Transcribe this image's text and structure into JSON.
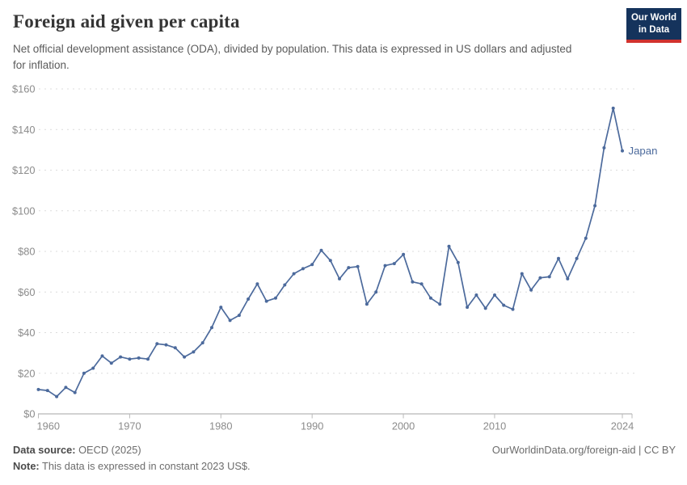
{
  "header": {
    "title": "Foreign aid given per capita",
    "subtitle": "Net official development assistance (ODA), divided by population. This data is expressed in US dollars and adjusted for inflation.",
    "logo": {
      "line1": "Our World",
      "line2": "in Data"
    }
  },
  "chart_data": {
    "type": "line",
    "title": "Foreign aid given per capita",
    "x": [
      1960,
      1961,
      1962,
      1963,
      1964,
      1965,
      1966,
      1967,
      1968,
      1969,
      1970,
      1971,
      1972,
      1973,
      1974,
      1975,
      1976,
      1977,
      1978,
      1979,
      1980,
      1981,
      1982,
      1983,
      1984,
      1985,
      1986,
      1987,
      1988,
      1989,
      1990,
      1991,
      1992,
      1993,
      1994,
      1995,
      1996,
      1997,
      1998,
      1999,
      2000,
      2001,
      2002,
      2003,
      2004,
      2005,
      2006,
      2007,
      2008,
      2009,
      2010,
      2011,
      2012,
      2013,
      2014,
      2015,
      2016,
      2017,
      2018,
      2019,
      2020,
      2021,
      2022,
      2023,
      2024
    ],
    "series": [
      {
        "name": "Japan",
        "color": "#4c6a9c",
        "values": [
          12,
          11.5,
          8.5,
          13,
          10.5,
          20,
          22.5,
          28.5,
          25,
          28,
          27,
          27.5,
          27,
          34.5,
          34,
          32.5,
          28,
          30.5,
          35,
          42.5,
          52.5,
          46,
          48.5,
          56.5,
          64,
          55.5,
          57,
          63.5,
          69,
          71.5,
          73.5,
          80.5,
          75.5,
          66.5,
          72,
          72.5,
          54,
          60,
          73,
          74,
          78.5,
          65,
          64,
          57,
          54,
          82.5,
          74.5,
          52.5,
          58.5,
          52,
          58.5,
          53.5,
          51.5,
          69,
          61,
          67,
          67.5,
          76.5,
          66.5,
          76.5,
          86.5,
          102.5,
          131,
          150.5,
          129.5
        ]
      }
    ],
    "xlabel": "",
    "ylabel": "",
    "ylim": [
      0,
      160
    ],
    "ytick_step": 20,
    "ytick_prefix": "$",
    "xticks": [
      1960,
      1970,
      1980,
      1990,
      2000,
      2010,
      2024
    ],
    "grid": "horizontal-dashed",
    "legend_position": "end-of-line-label",
    "end_label": "Japan"
  },
  "footer": {
    "source_label": "Data source:",
    "source_value": " OECD (2025)",
    "note_label": "Note:",
    "note_value": " This data is expressed in constant 2023 US$.",
    "credit": "OurWorldinData.org/foreign-aid | CC BY"
  },
  "colors": {
    "line": "#4c6a9c",
    "grid": "#dcdcdc",
    "axis": "#a6a6a6",
    "tick": "#b9b9b9",
    "tick_text": "#8b8b8b",
    "logo_navy": "#15335c",
    "logo_red": "#d1322e"
  }
}
